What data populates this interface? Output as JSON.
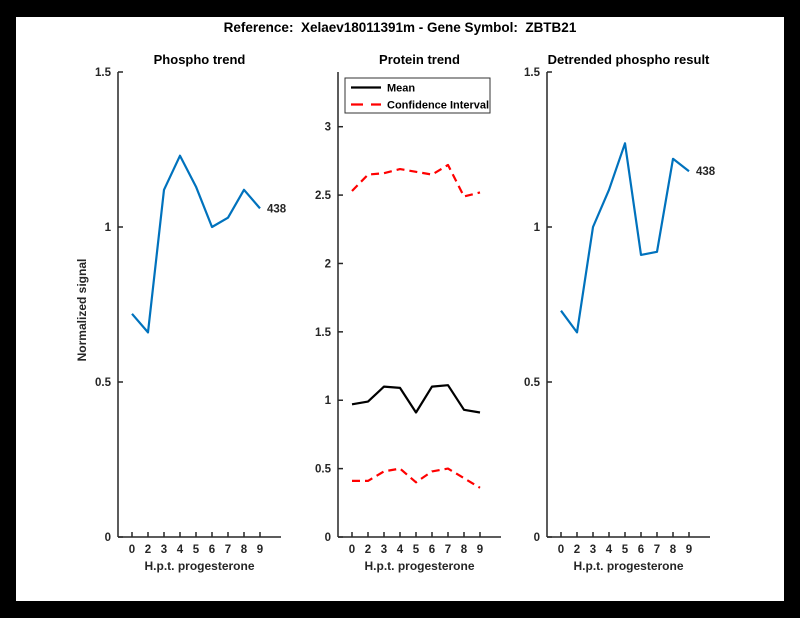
{
  "figure": {
    "title": "Reference:  Xelaev18011391m - Gene Symbol:  ZBTB21",
    "background_color": "#000000",
    "paper_color": "#ffffff",
    "axis_color": "#262626"
  },
  "chart_data": [
    {
      "type": "line",
      "title": "Phospho trend",
      "xlabel": "H.p.t. progesterone",
      "ylabel": "Normalized signal",
      "x_tick_labels": [
        "0",
        "2",
        "3",
        "4",
        "5",
        "6",
        "7",
        "8",
        "9"
      ],
      "yticks": [
        0,
        0.5,
        1,
        1.5
      ],
      "ytick_labels": [
        "0",
        "0.5",
        "1",
        "1.5"
      ],
      "ylim": [
        0,
        1.5
      ],
      "grid": "off",
      "series": [
        {
          "name": "438",
          "color": "#0072BD",
          "style": "solid",
          "values": [
            0.72,
            0.66,
            1.12,
            1.23,
            1.13,
            1.0,
            1.03,
            1.12,
            1.06
          ]
        }
      ],
      "end_label": "438"
    },
    {
      "type": "line",
      "title": "Protein trend",
      "xlabel": "H.p.t. progesterone",
      "ylabel": "",
      "x_tick_labels": [
        "0",
        "2",
        "3",
        "4",
        "5",
        "6",
        "7",
        "8",
        "9"
      ],
      "yticks": [
        0,
        0.5,
        1,
        1.5,
        2,
        2.5,
        3
      ],
      "ytick_labels": [
        "0",
        "0.5",
        "1",
        "1.5",
        "2",
        "2.5",
        "3"
      ],
      "ylim": [
        0,
        3.4
      ],
      "grid": "off",
      "legend": {
        "position": "northwest",
        "entries": [
          {
            "label": "Mean",
            "color": "#000000",
            "style": "solid"
          },
          {
            "label": "Confidence Interval",
            "color": "#ff0000",
            "style": "dashed"
          }
        ]
      },
      "series": [
        {
          "name": "Mean",
          "color": "#000000",
          "style": "solid",
          "values": [
            0.97,
            0.99,
            1.1,
            1.09,
            0.91,
            1.1,
            1.11,
            0.93,
            0.91
          ]
        },
        {
          "name": "Confidence Interval (upper)",
          "color": "#ff0000",
          "style": "dashed",
          "values": [
            2.53,
            2.65,
            2.66,
            2.69,
            2.67,
            2.65,
            2.72,
            2.49,
            2.52
          ]
        },
        {
          "name": "Confidence Interval (lower)",
          "color": "#ff0000",
          "style": "dashed",
          "values": [
            0.41,
            0.41,
            0.48,
            0.5,
            0.4,
            0.48,
            0.5,
            0.43,
            0.36
          ]
        }
      ]
    },
    {
      "type": "line",
      "title": "Detrended phospho result",
      "xlabel": "H.p.t. progesterone",
      "ylabel": "",
      "x_tick_labels": [
        "0",
        "2",
        "3",
        "4",
        "5",
        "6",
        "7",
        "8",
        "9"
      ],
      "yticks": [
        0,
        0.5,
        1,
        1.5
      ],
      "ytick_labels": [
        "0",
        "0.5",
        "1",
        "1.5"
      ],
      "ylim": [
        0,
        1.5
      ],
      "grid": "off",
      "series": [
        {
          "name": "438",
          "color": "#0072BD",
          "style": "solid",
          "values": [
            0.73,
            0.66,
            1.0,
            1.12,
            1.27,
            0.91,
            0.92,
            1.22,
            1.18
          ]
        }
      ],
      "end_label": "438"
    }
  ]
}
